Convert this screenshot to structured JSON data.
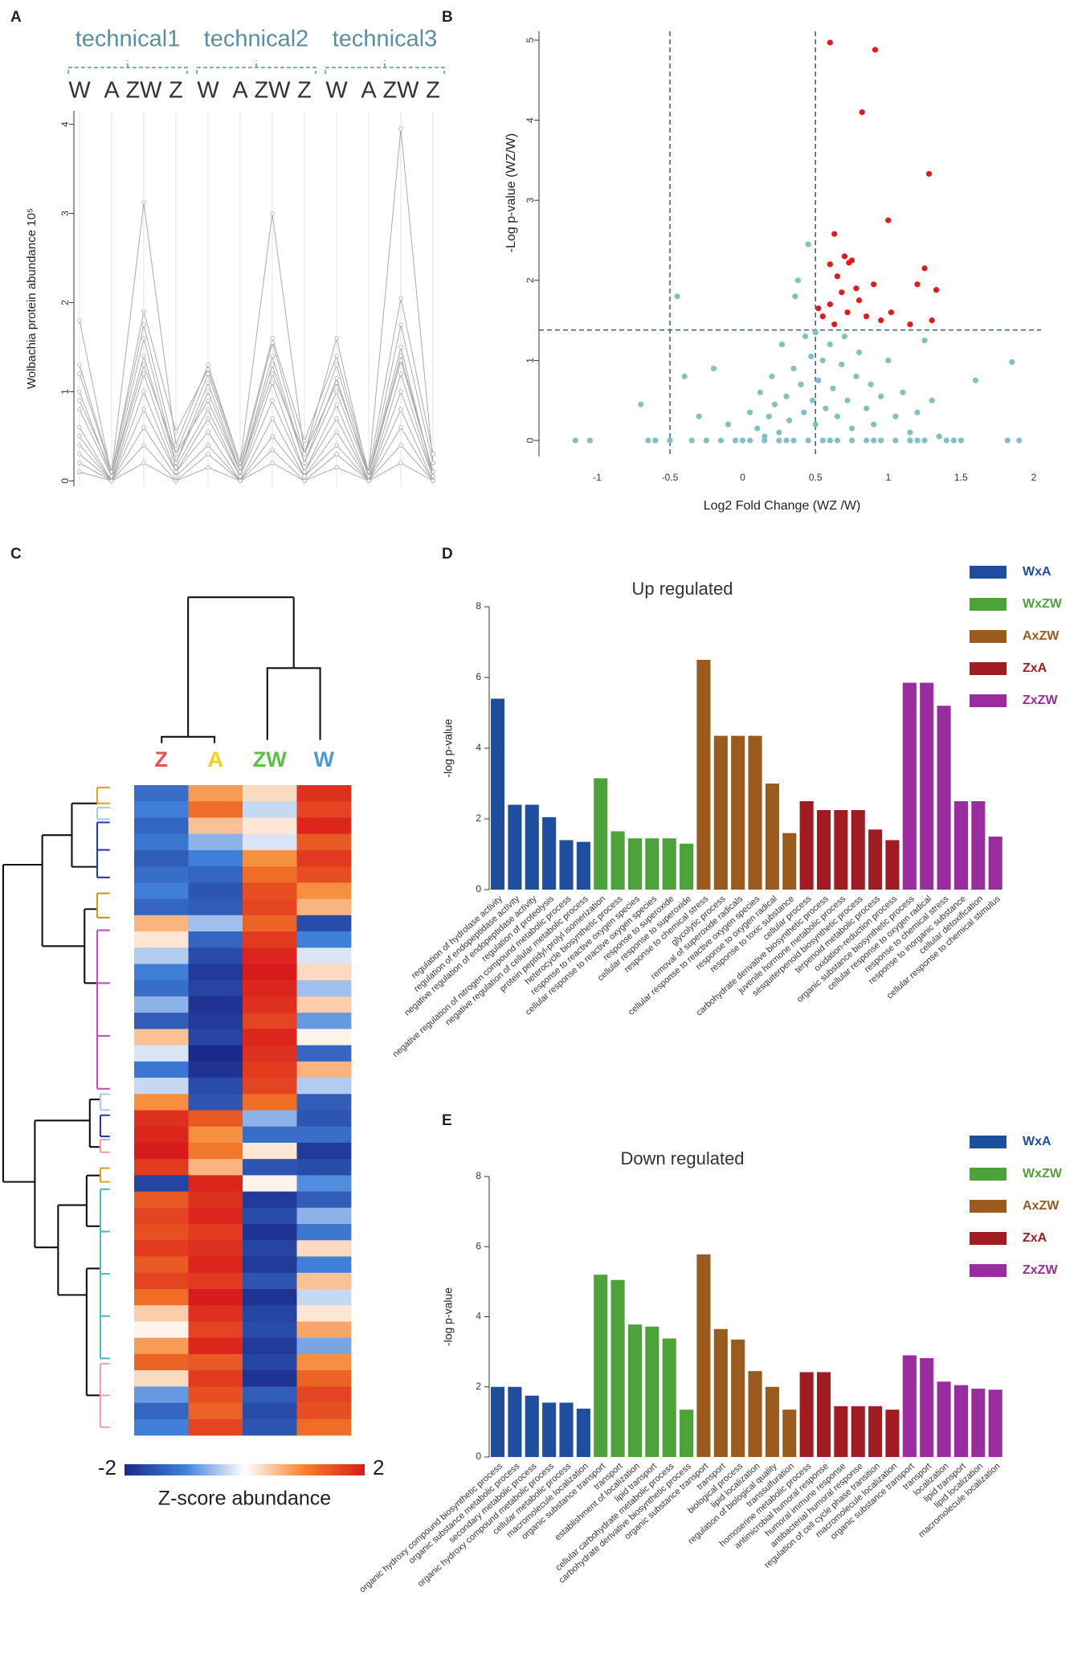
{
  "chart_data": [
    {
      "type": "line",
      "label": "A",
      "groups": [
        "technical1",
        "technical2",
        "technical3"
      ],
      "categories": [
        "W",
        "A",
        "ZW",
        "Z",
        "W",
        "A",
        "ZW",
        "Z",
        "W",
        "A",
        "ZW",
        "Z"
      ],
      "ylabel": "Wolbachia protein abundance 10⁵",
      "ylim": [
        -0.06,
        4.15
      ],
      "yticks": [
        0,
        1,
        2,
        3,
        4
      ],
      "color": "#a9a9a9",
      "series": [
        {
          "values": [
            1.8,
            0.05,
            1.3,
            0.3,
            0.9,
            0.1,
            1.2,
            0.3,
            1.6,
            0.05,
            1.5,
            0.05
          ]
        },
        {
          "values": [
            0.9,
            0.1,
            3.12,
            0.4,
            1.3,
            0.2,
            3.0,
            0.3,
            1.1,
            0.1,
            3.95,
            0.2
          ]
        },
        {
          "values": [
            1.3,
            0.1,
            1.9,
            0.55,
            1.25,
            0.2,
            1.6,
            0.45,
            1.4,
            0.1,
            2.05,
            0.3
          ]
        },
        {
          "values": [
            1.2,
            0.1,
            1.75,
            0.3,
            1.2,
            0.15,
            1.55,
            0.3,
            1.3,
            0.05,
            1.75,
            0.2
          ]
        },
        {
          "values": [
            1.0,
            0.05,
            1.6,
            0.2,
            1.1,
            0.1,
            1.4,
            0.2,
            1.15,
            0.05,
            1.4,
            0.1
          ]
        },
        {
          "values": [
            0.8,
            0.05,
            1.4,
            0.2,
            1.0,
            0.1,
            1.3,
            0.2,
            1.0,
            0.05,
            1.35,
            0.1
          ]
        },
        {
          "values": [
            0.6,
            0.0,
            1.2,
            0.15,
            0.8,
            0.05,
            1.1,
            0.1,
            0.85,
            0.0,
            1.2,
            0.05
          ]
        },
        {
          "values": [
            0.5,
            0.0,
            1.0,
            0.1,
            0.7,
            0.05,
            0.9,
            0.1,
            0.7,
            0.0,
            1.0,
            0.05
          ]
        },
        {
          "values": [
            0.4,
            0.0,
            0.8,
            0.1,
            0.55,
            0.0,
            0.7,
            0.05,
            0.55,
            0.0,
            0.8,
            0.0
          ]
        },
        {
          "values": [
            0.3,
            0.0,
            0.6,
            0.05,
            0.4,
            0.0,
            0.5,
            0.05,
            0.4,
            0.0,
            0.6,
            0.0
          ]
        },
        {
          "values": [
            0.2,
            0.0,
            0.4,
            0.0,
            0.3,
            0.0,
            0.35,
            0.0,
            0.3,
            0.0,
            0.4,
            0.0
          ]
        },
        {
          "values": [
            0.1,
            0.0,
            0.2,
            0.0,
            0.15,
            0.0,
            0.2,
            0.0,
            0.15,
            0.0,
            0.2,
            0.0
          ]
        }
      ]
    },
    {
      "type": "scatter",
      "label": "B",
      "xlabel": "Log2 Fold Change (WZ /W)",
      "ylabel": "-Log p-value (WZ/W)",
      "xlim": [
        -1.4,
        2.05
      ],
      "ylim": [
        -0.2,
        5.11
      ],
      "xticks": [
        -1,
        -0.5,
        0,
        0.5,
        1,
        1.5,
        2
      ],
      "yticks": [
        0,
        1,
        2,
        3,
        4,
        5
      ],
      "vlines": [
        -0.5,
        0.5
      ],
      "hline": 1.38,
      "line_color": "#2f5f7f",
      "series": [
        {
          "color": "#80c1c4",
          "x": [
            -1.05,
            -1.15,
            -0.7,
            -0.6,
            -0.45,
            -0.4,
            -0.3,
            -0.2,
            -0.15,
            -0.1,
            0,
            0.05,
            0.1,
            0.12,
            0.15,
            0.18,
            0.2,
            0.22,
            0.25,
            0.27,
            0.3,
            0.32,
            0.35,
            0.36,
            0.38,
            0.4,
            0.42,
            0.43,
            0.45,
            0.47,
            0.48,
            0.5,
            0.5,
            0.52,
            0.55,
            0.57,
            0.6,
            0.62,
            0.65,
            0.68,
            0.7,
            0.72,
            0.75,
            0.78,
            0.8,
            0.85,
            0.88,
            0.9,
            0.95,
            1.0,
            1.05,
            1.1,
            1.15,
            1.2,
            1.25,
            1.3,
            1.35,
            1.4,
            1.6,
            1.82,
            1.85,
            1.9,
            -0.5,
            0.3,
            0.6,
            0.9,
            1.2,
            -0.25,
            0.15,
            0.45,
            0.75,
            1.05,
            -0.65,
            -0.35,
            -0.05,
            0.05,
            0.25,
            0.35,
            0.55,
            0.65,
            0.85,
            0.95,
            1.15,
            1.25,
            1.45,
            1.5
          ],
          "y": [
            0,
            0,
            0.45,
            0,
            1.8,
            0.8,
            0.3,
            0.9,
            0,
            0.2,
            0,
            0.35,
            0.15,
            0.6,
            0.05,
            0.3,
            0.8,
            0.45,
            0.1,
            1.2,
            0.55,
            0.25,
            0.9,
            1.8,
            2.0,
            0.7,
            0.35,
            1.3,
            2.45,
            1.05,
            0.5,
            0.2,
            1.35,
            0.75,
            1.0,
            0.4,
            1.2,
            0.65,
            0.3,
            0.95,
            1.3,
            0.5,
            0.15,
            0.8,
            1.1,
            0.4,
            0.7,
            0.2,
            0.55,
            1.0,
            0.3,
            0.6,
            0.1,
            0.35,
            1.25,
            0.5,
            0.05,
            0,
            0.75,
            0,
            0.98,
            0,
            0,
            0,
            0,
            0,
            0,
            0,
            0,
            0,
            0,
            0,
            0,
            0,
            0,
            0,
            0,
            0,
            0,
            0,
            0,
            0,
            0,
            0,
            0,
            0
          ]
        },
        {
          "color": "#e3191c",
          "x": [
            0.6,
            0.91,
            0.82,
            1.28,
            1.0,
            0.63,
            0.7,
            0.73,
            0.75,
            0.6,
            0.65,
            1.25,
            0.78,
            0.68,
            0.9,
            1.2,
            1.33,
            0.52,
            0.6,
            0.72,
            0.55,
            0.8,
            0.63,
            0.85,
            0.95,
            1.3,
            1.15,
            1.02
          ],
          "y": [
            4.97,
            4.88,
            4.1,
            3.33,
            2.75,
            2.58,
            2.3,
            2.22,
            2.25,
            2.2,
            2.05,
            2.15,
            1.9,
            1.85,
            1.95,
            1.95,
            1.88,
            1.65,
            1.7,
            1.6,
            1.55,
            1.75,
            1.45,
            1.55,
            1.5,
            1.5,
            1.45,
            1.6
          ]
        }
      ]
    },
    {
      "type": "heatmap",
      "label": "C",
      "columns": [
        "Z",
        "A",
        "ZW",
        "W"
      ],
      "column_colors": [
        "#e8504a",
        "#f2d21b",
        "#5cbf4a",
        "#4a9ad8"
      ],
      "colorscale": [
        "#1b2a8a",
        "#3f7fd8",
        "#ffffff",
        "#f5822a",
        "#d81b1b"
      ],
      "zlim": [
        -2,
        2
      ],
      "zticks": [
        -2,
        2
      ],
      "colorbar_label": "Z-score abundance",
      "values": [
        [
          -1.2,
          0.8,
          0.3,
          1.8
        ],
        [
          -1.0,
          1.2,
          -0.3,
          1.6
        ],
        [
          -1.3,
          0.5,
          0.2,
          1.9
        ],
        [
          -1.1,
          -0.6,
          -0.2,
          1.4
        ],
        [
          -1.4,
          -1.0,
          0.9,
          1.7
        ],
        [
          -1.2,
          -1.3,
          1.2,
          1.5
        ],
        [
          -1.0,
          -1.5,
          1.5,
          0.9
        ],
        [
          -1.3,
          -1.4,
          1.6,
          0.6
        ],
        [
          0.6,
          -0.5,
          1.3,
          -1.6
        ],
        [
          0.2,
          -1.3,
          1.7,
          -1.0
        ],
        [
          -0.4,
          -1.6,
          1.9,
          -0.2
        ],
        [
          -1.0,
          -1.8,
          2.0,
          0.3
        ],
        [
          -1.2,
          -1.7,
          1.9,
          -0.5
        ],
        [
          -0.6,
          -1.9,
          1.8,
          0.4
        ],
        [
          -1.4,
          -1.8,
          1.6,
          -0.8
        ],
        [
          0.5,
          -1.7,
          1.9,
          0.1
        ],
        [
          -0.2,
          -2.0,
          1.8,
          -1.3
        ],
        [
          -1.1,
          -1.9,
          1.7,
          0.6
        ],
        [
          -0.3,
          -1.6,
          1.6,
          -0.4
        ],
        [
          0.9,
          -1.5,
          1.2,
          -1.4
        ],
        [
          1.8,
          1.4,
          -0.6,
          -1.5
        ],
        [
          1.9,
          0.9,
          -1.2,
          -1.2
        ],
        [
          2.0,
          1.1,
          0.2,
          -1.8
        ],
        [
          1.7,
          0.6,
          -1.5,
          -1.6
        ],
        [
          -1.7,
          1.9,
          0.1,
          -0.9
        ],
        [
          1.4,
          1.8,
          -1.8,
          -1.4
        ],
        [
          1.6,
          1.9,
          -1.6,
          -0.6
        ],
        [
          1.5,
          1.7,
          -1.9,
          -1.1
        ],
        [
          1.7,
          1.8,
          -1.7,
          0.3
        ],
        [
          1.4,
          1.9,
          -1.8,
          -1.0
        ],
        [
          1.6,
          1.7,
          -1.5,
          0.5
        ],
        [
          1.2,
          2.0,
          -1.9,
          -0.3
        ],
        [
          0.4,
          1.8,
          -1.7,
          0.2
        ],
        [
          0.1,
          1.6,
          -1.6,
          0.7
        ],
        [
          0.8,
          1.9,
          -1.8,
          -0.7
        ],
        [
          1.3,
          1.4,
          -1.7,
          0.9
        ],
        [
          0.3,
          1.7,
          -1.9,
          1.3
        ],
        [
          -0.8,
          1.5,
          -1.4,
          1.6
        ],
        [
          -1.3,
          1.3,
          -1.6,
          1.5
        ],
        [
          -1.0,
          1.6,
          -1.5,
          1.2
        ]
      ]
    },
    {
      "type": "bar",
      "label": "D",
      "title": "Up regulated",
      "ylabel": "-log p-value",
      "ylim": [
        0,
        8
      ],
      "yticks": [
        0,
        2,
        4,
        6,
        8
      ],
      "series": [
        {
          "name": "WxA",
          "color": "#1f4e9e",
          "categories": [
            "regulation of hydrolase activity",
            "regulation of endopeptidase activity",
            "negative regulation of endopeptidase activity",
            "regulation of proteolysis",
            "negative regulation of nitrogen compound metabolic process",
            "negative regulation of cellular metabolic process"
          ],
          "values": [
            5.4,
            2.4,
            2.4,
            2.05,
            1.4,
            1.35
          ]
        },
        {
          "name": "WxZW",
          "color": "#4ea23a",
          "categories": [
            "protein peptidyl-prolyl isomerization",
            "heterocycle biosynthetic process",
            "response to reactive oxygen species",
            "cellular response to reactive oxygen species",
            "response to superoxide",
            "cellular response to superoxide"
          ],
          "values": [
            3.15,
            1.65,
            1.45,
            1.45,
            1.45,
            1.3
          ]
        },
        {
          "name": "AxZW",
          "color": "#9b5a1e",
          "categories": [
            "response to chemical stress",
            "glycolytic process",
            "removal of superoxide radicals",
            "cellular response to reactive oxygen species",
            "response to oxygen radical",
            "response to toxic substance"
          ],
          "values": [
            6.5,
            4.35,
            4.35,
            4.35,
            3.0,
            1.6
          ]
        },
        {
          "name": "ZxA",
          "color": "#a01c22",
          "categories": [
            "cellular process",
            "carbohydrate derivative biosynthetic process",
            "juvenile hormone metabolic process",
            "sesquiterpenoid biosynthetic process",
            "terpenoid metabolic process",
            "oxidation-reduction process"
          ],
          "values": [
            2.5,
            2.25,
            2.25,
            2.25,
            1.7,
            1.4
          ]
        },
        {
          "name": "ZxZW",
          "color": "#9b2ca0",
          "categories": [
            "organic substance biosynthetic process",
            "cellular response to oxygen radical",
            "response to chemical stress",
            "response to inorganic substance",
            "cellular detoxification",
            "cellular response to chemical stimulus"
          ],
          "values": [
            5.85,
            5.85,
            5.2,
            2.5,
            2.5,
            1.5
          ]
        }
      ]
    },
    {
      "type": "bar",
      "label": "E",
      "title": "Down regulated",
      "ylabel": "-log p-value",
      "ylim": [
        0,
        8
      ],
      "yticks": [
        0,
        2,
        4,
        6,
        8
      ],
      "series": [
        {
          "name": "WxA",
          "color": "#1f4e9e",
          "categories": [
            "organic hydroxy compound biosynthetic process",
            "organic substance metabolic process",
            "secondary metabolic process",
            "organic hydroxy compound metabolic process",
            "cellular metabolic process",
            "macromolecule localization"
          ],
          "values": [
            2.0,
            2.0,
            1.75,
            1.55,
            1.55,
            1.38
          ]
        },
        {
          "name": "WxZW",
          "color": "#4ea23a",
          "categories": [
            "organic substance transport",
            "transport",
            "establishment of localization",
            "lipid transport",
            "cellular carbohydrate metabolic process",
            "carbohydrate derivative biosynthetic process"
          ],
          "values": [
            5.2,
            5.05,
            3.78,
            3.72,
            3.38,
            1.35
          ]
        },
        {
          "name": "AxZW",
          "color": "#9b5a1e",
          "categories": [
            "organic substance transport",
            "transport",
            "biological process",
            "lipid localization",
            "regulation of biological quality",
            "transsulfuration"
          ],
          "values": [
            5.78,
            3.65,
            3.35,
            2.45,
            2.0,
            1.35
          ]
        },
        {
          "name": "ZxA",
          "color": "#a01c22",
          "categories": [
            "homoserine metabolic process",
            "antimicrobial humoral response",
            "humoral immune response",
            "antibacterial humoral response",
            "regulation of cell cycle phase transition",
            "macromolecule localization"
          ],
          "values": [
            2.42,
            2.42,
            1.45,
            1.45,
            1.45,
            1.35
          ]
        },
        {
          "name": "ZxZW",
          "color": "#9b2ca0",
          "categories": [
            "organic substance transport",
            "transport",
            "localization",
            "lipid transport",
            "lipid localization",
            "macromolecule localization"
          ],
          "values": [
            2.9,
            2.82,
            2.15,
            2.05,
            1.95,
            1.92
          ]
        }
      ]
    }
  ]
}
